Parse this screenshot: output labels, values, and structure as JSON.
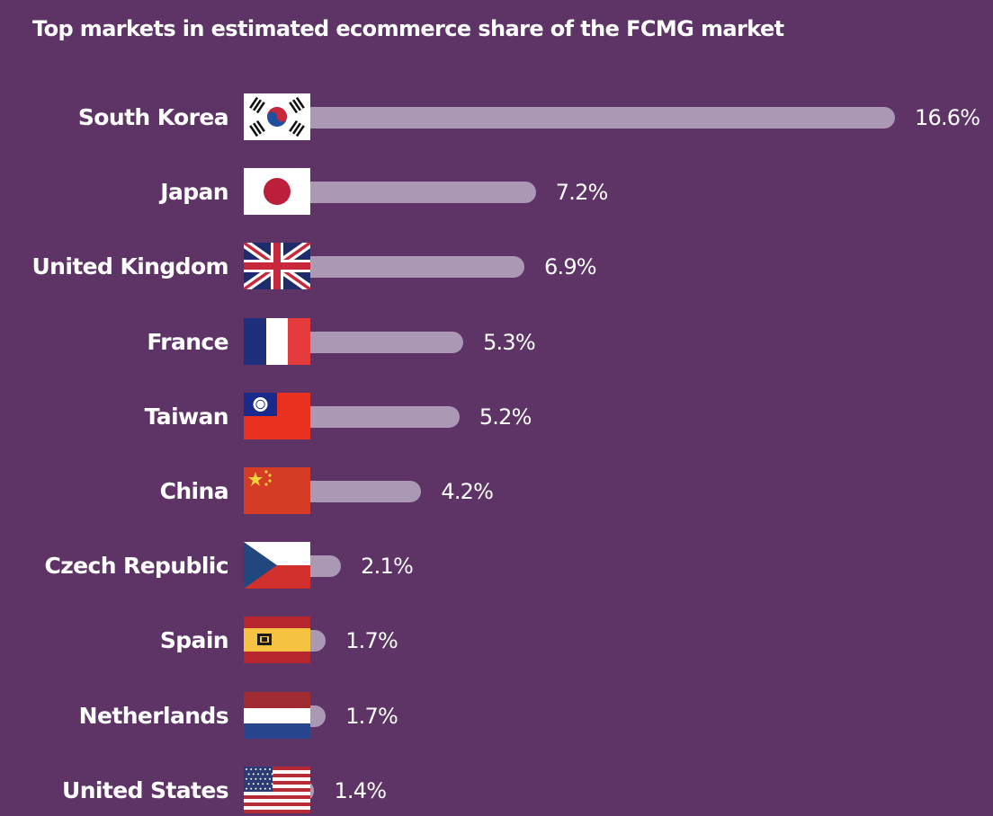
{
  "chart_data": {
    "type": "bar",
    "orientation": "horizontal",
    "title": "Top markets in estimated ecommerce share of the FCMG market",
    "categories": [
      "South Korea",
      "Japan",
      "United Kingdom",
      "France",
      "Taiwan",
      "China",
      "Czech Republic",
      "Spain",
      "Netherlands",
      "United States"
    ],
    "values": [
      16.6,
      7.2,
      6.9,
      5.3,
      5.2,
      4.2,
      2.1,
      1.7,
      1.7,
      1.4
    ],
    "value_labels": [
      "16.6%",
      "7.2%",
      "6.9%",
      "5.3%",
      "5.2%",
      "4.2%",
      "2.1%",
      "1.7%",
      "1.7%",
      "1.4%"
    ],
    "flags": [
      "south-korea-flag",
      "japan-flag",
      "united-kingdom-flag",
      "france-flag",
      "taiwan-flag",
      "china-flag",
      "czech-republic-flag",
      "spain-flag",
      "netherlands-flag",
      "united-states-flag"
    ],
    "xlabel": "",
    "ylabel": "",
    "xlim": [
      0,
      16.6
    ],
    "grid": false,
    "legend": "none",
    "colors": {
      "background": "#5e3466",
      "bar": "#ab98b5",
      "text": "#ffffff"
    }
  }
}
